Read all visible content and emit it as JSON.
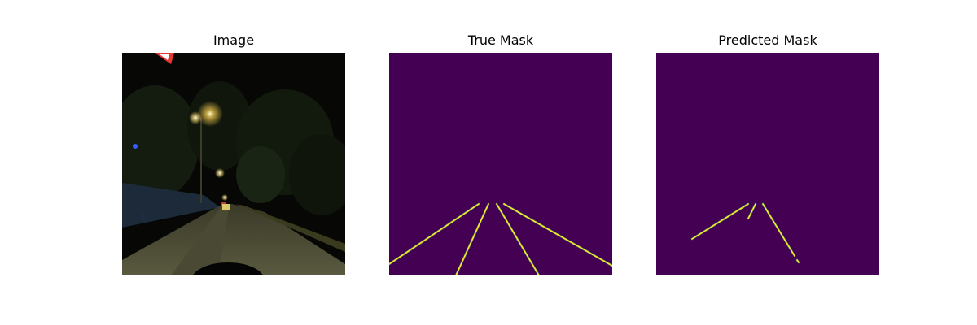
{
  "figure": {
    "panels": [
      {
        "title": "Image"
      },
      {
        "title": "True Mask"
      },
      {
        "title": "Predicted Mask"
      }
    ],
    "colors": {
      "mask_background": "#440154",
      "mask_lane": "#fde725",
      "mask_edge": "#35b779"
    }
  }
}
